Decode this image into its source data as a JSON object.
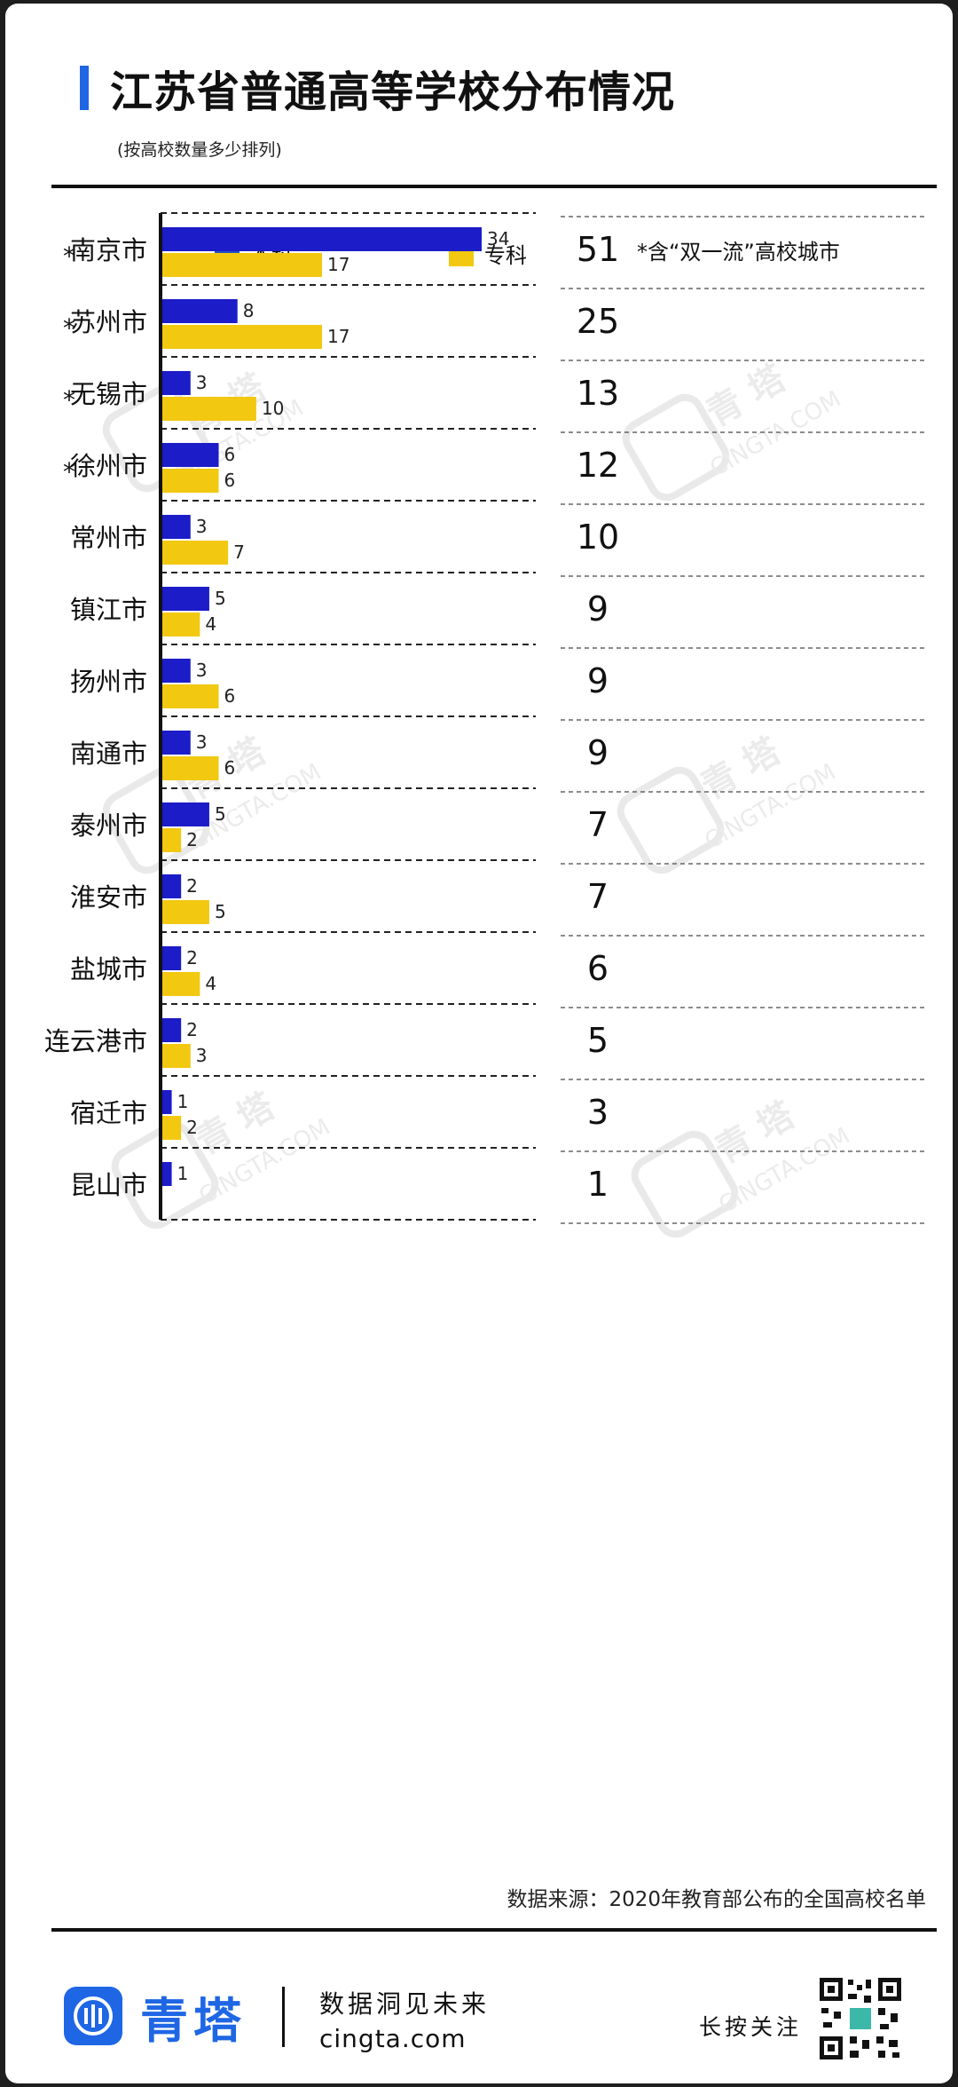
{
  "header": {
    "title": "江苏省普通高等学校分布情况",
    "subtitle": "(按高校数量多少排列)"
  },
  "legend": {
    "bachelor_label": "本科",
    "associate_label": "专科",
    "note": "*含“双一流”高校城市"
  },
  "colors": {
    "accent": "#1f66e5",
    "bachelor": "#1c1cc8",
    "associate": "#f2c811",
    "legend_bachelor": "#1f4fc8"
  },
  "chart_data": {
    "type": "bar",
    "orientation": "horizontal",
    "categories": [
      "南京市",
      "苏州市",
      "无锡市",
      "徐州市",
      "常州市",
      "镇江市",
      "扬州市",
      "南通市",
      "泰州市",
      "淮安市",
      "盐城市",
      "连云港市",
      "宿迁市",
      "昆山市"
    ],
    "star": [
      true,
      true,
      true,
      true,
      false,
      false,
      false,
      false,
      false,
      false,
      false,
      false,
      false,
      false
    ],
    "series": [
      {
        "name": "本科",
        "values": [
          34,
          8,
          3,
          6,
          3,
          5,
          3,
          3,
          5,
          2,
          2,
          2,
          1,
          1
        ]
      },
      {
        "name": "专科",
        "values": [
          17,
          17,
          10,
          6,
          7,
          4,
          6,
          6,
          2,
          5,
          4,
          3,
          2,
          null
        ]
      }
    ],
    "totals": [
      51,
      25,
      13,
      12,
      10,
      9,
      9,
      9,
      7,
      7,
      6,
      5,
      3,
      1
    ],
    "star_mark": "*",
    "xlim": [
      0,
      34
    ]
  },
  "source": "数据来源：2020年教育部公布的全国高校名单",
  "footer": {
    "brand": "青塔",
    "slogan": "数据洞见未来",
    "site": "cingta.com",
    "follow": "长按关注"
  },
  "watermark": {
    "brand": "青 塔",
    "site": "CINGTA.COM"
  }
}
